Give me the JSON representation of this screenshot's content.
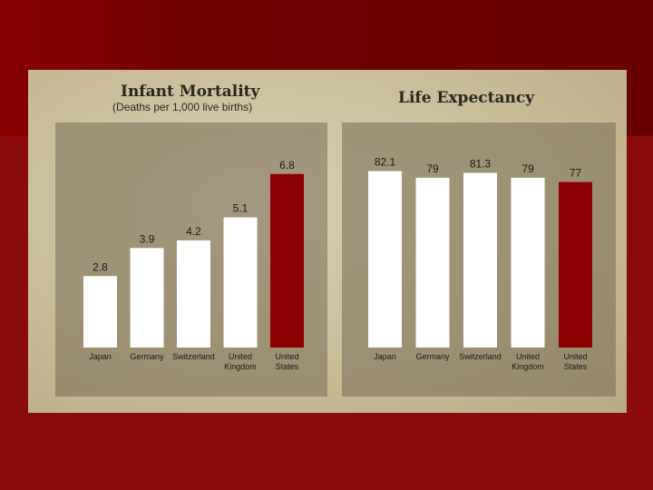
{
  "colors": {
    "background": "#7a0000",
    "panel": "#cfc4a2",
    "bar_default": "#ffffff",
    "bar_highlight": "#8b0000"
  },
  "chart_data": [
    {
      "type": "bar",
      "title": "Infant Mortality",
      "subtitle": "(Deaths per 1,000 live births)",
      "categories": [
        "Japan",
        "Germany",
        "Switzerland",
        "United Kingdom",
        "United States"
      ],
      "category_lines": [
        [
          "Japan"
        ],
        [
          "Germany"
        ],
        [
          "Switzerland"
        ],
        [
          "United",
          "Kingdom"
        ],
        [
          "United",
          "States"
        ]
      ],
      "values": [
        2.8,
        3.9,
        4.2,
        5.1,
        6.8
      ],
      "value_labels": [
        "2.8",
        "3.9",
        "4.2",
        "5.1",
        "6.8"
      ],
      "highlight": "United States",
      "ylim": [
        0,
        8
      ],
      "grid": false
    },
    {
      "type": "bar",
      "title": "Life Expectancy",
      "subtitle": "",
      "categories": [
        "Japan",
        "Germany",
        "Switzerland",
        "United Kingdom",
        "United States"
      ],
      "category_lines": [
        [
          "Japan"
        ],
        [
          "Germany"
        ],
        [
          "Switzerland"
        ],
        [
          "United",
          "Kingdom"
        ],
        [
          "United",
          "States"
        ]
      ],
      "values": [
        82.1,
        79,
        81.3,
        79,
        77
      ],
      "value_labels": [
        "82.1",
        "79",
        "81.3",
        "79",
        "77"
      ],
      "highlight": "United States",
      "ylim": [
        0,
        95
      ],
      "grid": false
    }
  ]
}
